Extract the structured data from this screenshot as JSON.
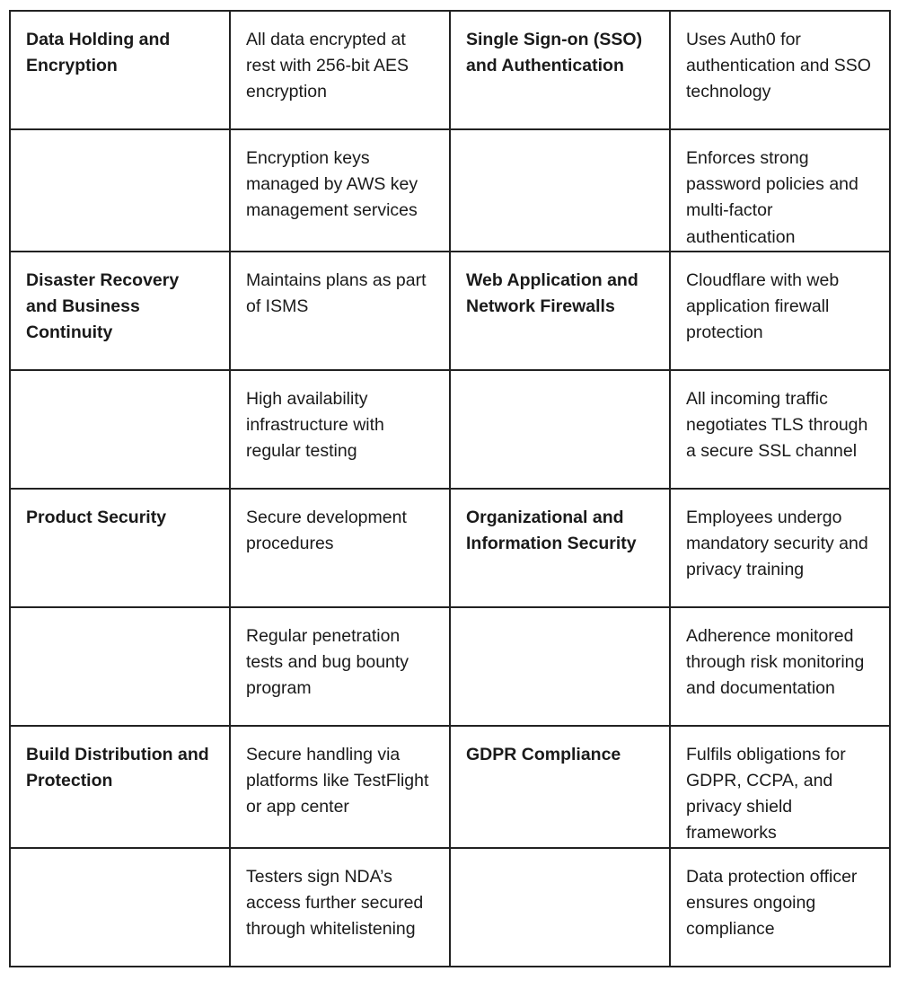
{
  "rows": [
    [
      "Data Holding and Encryption",
      "All data encrypted at rest with 256-bit AES encryption",
      "Single Sign-on (SSO) and Authentication",
      "Uses Auth0 for authentication and SSO technology"
    ],
    [
      "",
      "Encryption keys managed by AWS key management services",
      "",
      "Enforces strong password policies and multi-factor authentication"
    ],
    [
      "Disaster Recovery and Business Continuity",
      "Maintains plans as part of ISMS",
      "Web Application and Network Firewalls",
      "Cloudflare with web application firewall protection"
    ],
    [
      "",
      "High availability infrastructure with regular testing",
      "",
      "All incoming traffic negotiates TLS through a secure SSL channel"
    ],
    [
      "Product Security",
      "Secure development procedures",
      "Organizational and Information Security",
      "Employees undergo mandatory security and privacy training"
    ],
    [
      "",
      "Regular penetration tests and bug bounty program",
      "",
      "Adherence monitored through risk monitoring and documentation"
    ],
    [
      "Build Distribution and Protection",
      "Secure handling via platforms like TestFlight or app center",
      "GDPR Compliance",
      "Fulfils obligations for GDPR, CCPA, and privacy shield frameworks"
    ],
    [
      "",
      "Testers sign NDA’s access further secured through whitelistening",
      "",
      "Data protection officer ensures ongoing compliance"
    ]
  ]
}
